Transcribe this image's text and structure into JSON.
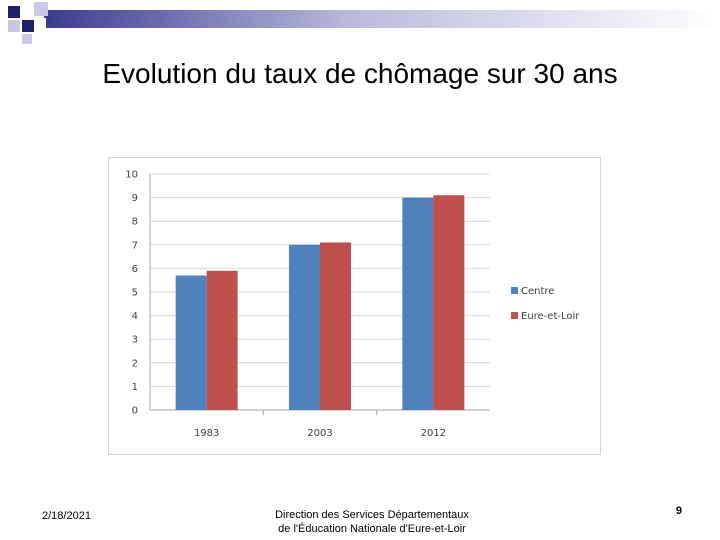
{
  "slide": {
    "title": "Evolution du taux de chômage sur 30 ans",
    "footer_date": "2/18/2021",
    "footer_line1": "Direction des Services Départementaux",
    "footer_line2": "de l'Éducation Nationale d'Eure-et-Loir",
    "page_number": "9"
  },
  "colors": {
    "header_dark": "#1f1f6b",
    "header_light": "#c9c9e6",
    "centre": "#4f81bd",
    "eure_et_loir": "#c0504d",
    "gridline": "#d9d9d9",
    "axis": "#a6a6a6"
  },
  "chart_data": {
    "type": "bar",
    "categories": [
      "1983",
      "2003",
      "2012"
    ],
    "series": [
      {
        "name": "Centre",
        "values": [
          5.7,
          7.0,
          9.0
        ],
        "color": "#4f81bd"
      },
      {
        "name": "Eure-et-Loir",
        "values": [
          5.9,
          7.1,
          9.1
        ],
        "color": "#c0504d"
      }
    ],
    "ylim": [
      0,
      10
    ],
    "yticks": [
      "0",
      "1",
      "2",
      "3",
      "4",
      "5",
      "6",
      "7",
      "8",
      "9",
      "10"
    ],
    "title": "",
    "xlabel": "",
    "ylabel": "",
    "grid": true,
    "legend_position": "right"
  }
}
